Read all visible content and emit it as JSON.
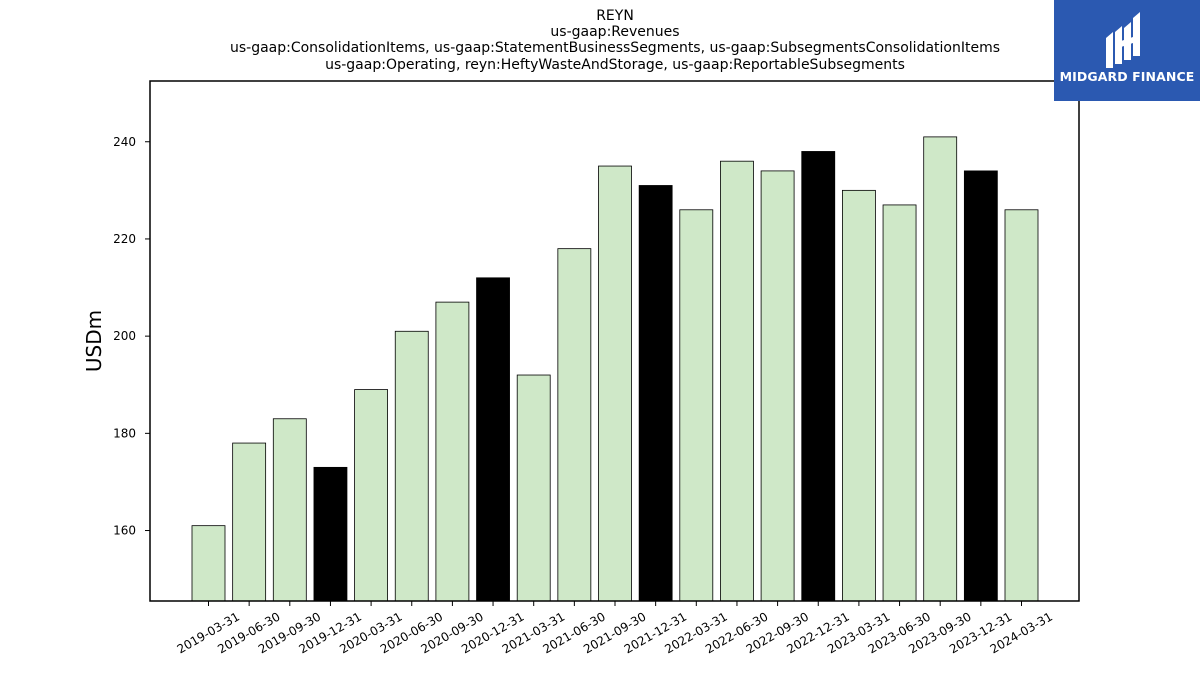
{
  "logo": {
    "text": "MIDGARD FINANCE",
    "background_color": "#2b59b1"
  },
  "chart_data": {
    "type": "bar",
    "title_lines": [
      "REYN",
      "us-gaap:Revenues",
      "us-gaap:ConsolidationItems, us-gaap:StatementBusinessSegments, us-gaap:SubsegmentsConsolidationItems",
      "us-gaap:Operating, reyn:HeftyWasteAndStorage, us-gaap:ReportableSubsegments"
    ],
    "xlabel": "",
    "ylabel": "USDm",
    "ylim": [
      145.5,
      252.5
    ],
    "yticks": [
      160,
      180,
      200,
      220,
      240
    ],
    "grid": false,
    "legend": "none",
    "colors": {
      "quarter_bar": "#cfe8c8",
      "year_end_bar": "#000000",
      "bar_edge": "#000000"
    },
    "categories": [
      "2019-03-31",
      "2019-06-30",
      "2019-09-30",
      "2019-12-31",
      "2020-03-31",
      "2020-06-30",
      "2020-09-30",
      "2020-12-31",
      "2021-03-31",
      "2021-06-30",
      "2021-09-30",
      "2021-12-31",
      "2022-03-31",
      "2022-06-30",
      "2022-09-30",
      "2022-12-31",
      "2023-03-31",
      "2023-06-30",
      "2023-09-30",
      "2023-12-31",
      "2024-03-31"
    ],
    "values": [
      161,
      178,
      183,
      173,
      189,
      201,
      207,
      212,
      192,
      218,
      235,
      231,
      226,
      236,
      234,
      238,
      230,
      227,
      241,
      234,
      226
    ],
    "year_end_flags": [
      false,
      false,
      false,
      true,
      false,
      false,
      false,
      true,
      false,
      false,
      false,
      true,
      false,
      false,
      false,
      true,
      false,
      false,
      false,
      true,
      false
    ]
  }
}
